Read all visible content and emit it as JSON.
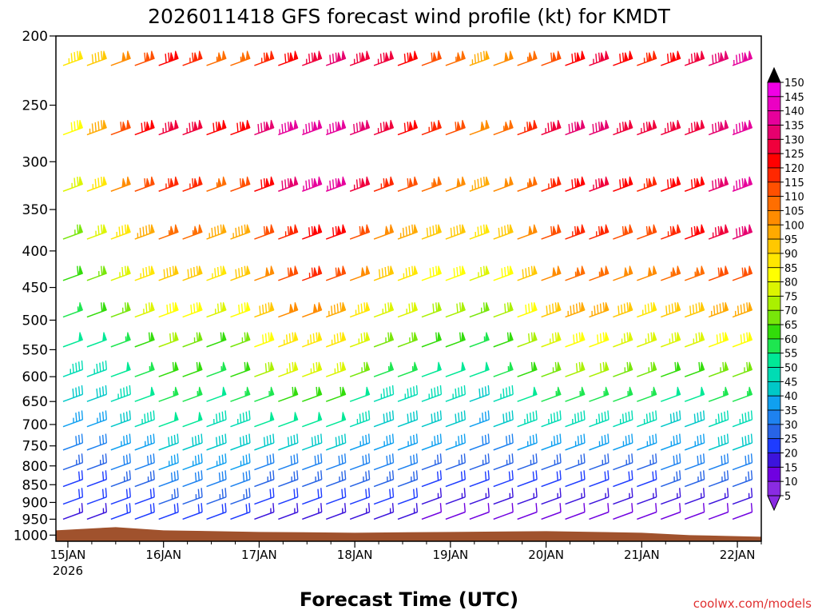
{
  "chart_data": {
    "type": "wind-barb-profile",
    "title": "2026011418 GFS forecast wind profile (kt) for KMDT",
    "xlabel": "Forecast Time (UTC)",
    "ylabel": "",
    "credit": "coolwx.com/models",
    "y_axis": {
      "unit": "hPa",
      "log_scale": true,
      "range": [
        1020,
        200
      ],
      "ticks": [
        200,
        250,
        300,
        350,
        400,
        450,
        500,
        550,
        600,
        650,
        700,
        750,
        800,
        850,
        900,
        950,
        1000
      ],
      "tick_labels": [
        "200",
        "250",
        "300",
        "350",
        "400",
        "450",
        "500",
        "550",
        "600",
        "650",
        "700",
        "750",
        "800",
        "850",
        "900",
        "950",
        "1000"
      ]
    },
    "x_axis": {
      "unit": "hours from 15JAN 00Z",
      "range": [
        -3,
        174
      ],
      "ticks": [
        0,
        24,
        48,
        72,
        96,
        120,
        144,
        168
      ],
      "tick_labels": [
        "15JAN",
        "16JAN",
        "17JAN",
        "18JAN",
        "19JAN",
        "20JAN",
        "21JAN",
        "22JAN"
      ],
      "sub_label": "2026"
    },
    "colorbar": {
      "unit": "kt",
      "ticks": [
        "5",
        "10",
        "15",
        "20",
        "25",
        "30",
        "35",
        "40",
        "45",
        "50",
        "55",
        "60",
        "65",
        "70",
        "75",
        "80",
        "85",
        "90",
        "95",
        "100",
        "105",
        "110",
        "115",
        "120",
        "125",
        "130",
        "135",
        "140",
        "145",
        "150"
      ],
      "colors": [
        "#8a2be2",
        "#7000e0",
        "#3c14dc",
        "#1e3cff",
        "#2864e6",
        "#1e82f0",
        "#10a0f0",
        "#00c8c8",
        "#00dcb4",
        "#00e896",
        "#1ee650",
        "#32dc0a",
        "#78e60a",
        "#aaf000",
        "#dcf500",
        "#ffff00",
        "#ffe600",
        "#ffc800",
        "#ffaa00",
        "#ff8c00",
        "#ff6e00",
        "#ff5000",
        "#ff2800",
        "#ff0000",
        "#f0003c",
        "#e6006e",
        "#e6009b",
        "#eb00c3",
        "#f000e6"
      ]
    },
    "wind_speed_by_level_kt": [
      {
        "level": 220,
        "speeds": [
          85,
          100,
          125,
          100,
          120,
          130,
          125,
          110,
          95,
          105,
          125,
          115,
          125,
          135
        ]
      },
      {
        "level": 275,
        "speeds": [
          80,
          110,
          130,
          115,
          135,
          135,
          125,
          115,
          100,
          120,
          130,
          125,
          125,
          135
        ]
      },
      {
        "level": 330,
        "speeds": [
          75,
          100,
          120,
          100,
          130,
          135,
          115,
          105,
          95,
          110,
          125,
          115,
          120,
          135
        ]
      },
      {
        "level": 385,
        "speeds": [
          65,
          85,
          110,
          90,
          115,
          125,
          100,
          90,
          85,
          105,
          115,
          110,
          120,
          130
        ]
      },
      {
        "level": 440,
        "speeds": [
          60,
          75,
          95,
          80,
          110,
          115,
          90,
          80,
          75,
          95,
          105,
          100,
          105,
          110
        ]
      },
      {
        "level": 495,
        "speeds": [
          55,
          65,
          85,
          70,
          100,
          100,
          75,
          70,
          65,
          85,
          95,
          85,
          90,
          95
        ]
      },
      {
        "level": 545,
        "speeds": [
          50,
          55,
          70,
          60,
          85,
          85,
          65,
          60,
          55,
          75,
          80,
          75,
          75,
          80
        ]
      },
      {
        "level": 600,
        "speeds": [
          45,
          50,
          60,
          55,
          75,
          75,
          55,
          50,
          50,
          65,
          70,
          65,
          60,
          65
        ]
      },
      {
        "level": 650,
        "speeds": [
          40,
          45,
          55,
          50,
          60,
          60,
          45,
          45,
          40,
          55,
          55,
          55,
          50,
          55
        ]
      },
      {
        "level": 705,
        "speeds": [
          35,
          40,
          50,
          45,
          50,
          50,
          40,
          40,
          35,
          45,
          45,
          45,
          40,
          45
        ]
      },
      {
        "level": 760,
        "speeds": [
          30,
          35,
          40,
          40,
          40,
          40,
          35,
          35,
          30,
          35,
          35,
          35,
          35,
          40
        ]
      },
      {
        "level": 810,
        "speeds": [
          25,
          30,
          35,
          35,
          30,
          30,
          30,
          25,
          25,
          25,
          25,
          25,
          30,
          30
        ]
      },
      {
        "level": 855,
        "speeds": [
          20,
          25,
          30,
          30,
          25,
          25,
          25,
          20,
          20,
          20,
          20,
          20,
          25,
          25
        ]
      },
      {
        "level": 905,
        "speeds": [
          20,
          20,
          25,
          25,
          20,
          20,
          20,
          15,
          15,
          15,
          15,
          15,
          15,
          15
        ]
      },
      {
        "level": 950,
        "speeds": [
          15,
          20,
          20,
          20,
          15,
          15,
          15,
          10,
          10,
          10,
          10,
          10,
          10,
          10
        ]
      },
      {
        "level": 995,
        "speeds": [
          10,
          15,
          15,
          15,
          10,
          10,
          10,
          10,
          5,
          5,
          5,
          5,
          5,
          5
        ]
      }
    ],
    "terrain": {
      "description": "surface pressure shading",
      "surface_pressure_hpa": 1000
    }
  }
}
